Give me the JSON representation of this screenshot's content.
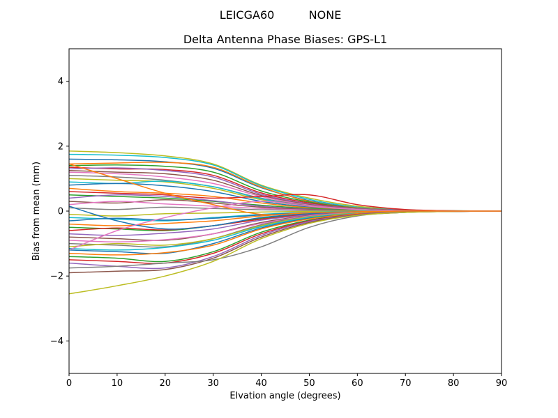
{
  "figure": {
    "suptitle": "LEICGA60        NONE",
    "suptitle_parts": [
      "LEICGA60",
      "NONE"
    ],
    "title": "Delta Antenna Phase Biases: GPS-L1"
  },
  "chart_data": {
    "type": "line",
    "suptitle": "LEICGA60        NONE",
    "title": "Delta Antenna Phase Biases: GPS-L1",
    "xlabel": "Elvation angle (degrees)",
    "ylabel": "Bias from mean (mm)",
    "xlim": [
      0,
      90
    ],
    "ylim": [
      -5,
      5
    ],
    "xticks": [
      0,
      10,
      20,
      30,
      40,
      50,
      60,
      70,
      80,
      90
    ],
    "yticks": [
      -4,
      -2,
      0,
      2,
      4
    ],
    "grid": false,
    "legend": "none",
    "x": [
      0,
      10,
      20,
      30,
      40,
      50,
      60,
      70,
      80,
      90
    ],
    "series": [
      {
        "name": "line-01",
        "color": "#bcbd22",
        "values": [
          1.85,
          1.8,
          1.7,
          1.45,
          0.8,
          0.4,
          0.15,
          0.04,
          0.01,
          0.0
        ]
      },
      {
        "name": "line-02",
        "color": "#17becf",
        "values": [
          1.75,
          1.72,
          1.65,
          1.42,
          0.78,
          0.36,
          0.12,
          0.03,
          0.01,
          0.0
        ]
      },
      {
        "name": "line-03",
        "color": "#1f77b4",
        "values": [
          1.6,
          1.58,
          1.52,
          1.32,
          0.72,
          0.32,
          0.1,
          0.03,
          0.0,
          0.0
        ]
      },
      {
        "name": "line-04",
        "color": "#ff7f0e",
        "values": [
          1.45,
          1.48,
          1.5,
          1.35,
          0.74,
          0.3,
          0.1,
          0.02,
          0.0,
          0.0
        ]
      },
      {
        "name": "line-05",
        "color": "#2ca02c",
        "values": [
          1.4,
          1.42,
          1.38,
          1.2,
          0.62,
          0.28,
          0.09,
          0.02,
          0.0,
          0.0
        ]
      },
      {
        "name": "line-06",
        "color": "#d62728",
        "values": [
          1.35,
          1.3,
          1.28,
          1.1,
          0.56,
          0.25,
          0.08,
          0.02,
          0.0,
          0.0
        ]
      },
      {
        "name": "line-07",
        "color": "#9467bd",
        "values": [
          1.3,
          1.33,
          1.25,
          1.05,
          0.52,
          0.22,
          0.08,
          0.02,
          0.0,
          0.0
        ]
      },
      {
        "name": "line-08",
        "color": "#8c564b",
        "values": [
          1.25,
          1.2,
          1.15,
          0.95,
          0.48,
          0.2,
          0.07,
          0.02,
          0.0,
          0.0
        ]
      },
      {
        "name": "line-09",
        "color": "#e377c2",
        "values": [
          1.2,
          1.15,
          1.05,
          0.85,
          0.45,
          0.18,
          0.06,
          0.01,
          0.0,
          0.0
        ]
      },
      {
        "name": "line-10",
        "color": "#7f7f7f",
        "values": [
          1.1,
          1.05,
          0.95,
          0.75,
          0.4,
          0.16,
          0.05,
          0.01,
          0.0,
          0.0
        ]
      },
      {
        "name": "line-11",
        "color": "#bcbd22",
        "values": [
          1.0,
          0.95,
          0.9,
          0.7,
          0.35,
          0.15,
          0.05,
          0.01,
          0.0,
          0.0
        ]
      },
      {
        "name": "line-12",
        "color": "#17becf",
        "values": [
          0.9,
          0.85,
          0.92,
          0.75,
          0.38,
          0.14,
          0.05,
          0.01,
          0.0,
          0.0
        ]
      },
      {
        "name": "line-13",
        "color": "#1f77b4",
        "values": [
          0.8,
          0.85,
          0.78,
          0.6,
          0.3,
          0.12,
          0.04,
          0.01,
          0.0,
          0.0
        ]
      },
      {
        "name": "line-14",
        "color": "#ff7f0e",
        "values": [
          0.7,
          0.6,
          0.55,
          0.45,
          0.25,
          0.1,
          0.03,
          0.01,
          0.0,
          0.0
        ]
      },
      {
        "name": "line-15",
        "color": "#d62728",
        "values": [
          0.6,
          0.55,
          0.5,
          0.4,
          0.45,
          0.5,
          0.2,
          0.05,
          0.01,
          0.0
        ]
      },
      {
        "name": "line-16",
        "color": "#2ca02c",
        "values": [
          0.5,
          0.45,
          0.4,
          0.3,
          0.18,
          0.08,
          0.03,
          0.01,
          0.0,
          0.0
        ]
      },
      {
        "name": "line-17",
        "color": "#9467bd",
        "values": [
          0.4,
          0.5,
          0.45,
          0.32,
          0.15,
          0.06,
          0.02,
          0.0,
          0.0,
          0.0
        ]
      },
      {
        "name": "line-18",
        "color": "#8c564b",
        "values": [
          0.3,
          0.25,
          0.35,
          0.25,
          0.12,
          0.05,
          0.02,
          0.0,
          0.0,
          0.0
        ]
      },
      {
        "name": "line-19",
        "color": "#e377c2",
        "values": [
          0.2,
          0.3,
          0.22,
          0.15,
          0.08,
          0.03,
          0.01,
          0.0,
          0.0,
          0.0
        ]
      },
      {
        "name": "line-20",
        "color": "#7f7f7f",
        "values": [
          0.1,
          0.05,
          0.12,
          0.08,
          0.04,
          0.02,
          0.01,
          0.0,
          0.0,
          0.0
        ]
      },
      {
        "name": "line-21",
        "color": "#bcbd22",
        "values": [
          -0.1,
          -0.15,
          -0.08,
          -0.06,
          -0.03,
          -0.01,
          0.0,
          0.0,
          0.0,
          0.0
        ]
      },
      {
        "name": "line-22",
        "color": "#17becf",
        "values": [
          -0.2,
          -0.25,
          -0.3,
          -0.2,
          -0.1,
          -0.04,
          -0.01,
          0.0,
          0.0,
          0.0
        ]
      },
      {
        "name": "line-23",
        "color": "#1f77b4",
        "values": [
          -0.3,
          -0.22,
          -0.28,
          -0.22,
          -0.12,
          -0.05,
          -0.02,
          0.0,
          0.0,
          0.0
        ]
      },
      {
        "name": "line-24",
        "color": "#ff7f0e",
        "values": [
          -0.4,
          -0.45,
          -0.38,
          -0.3,
          -0.15,
          -0.06,
          -0.02,
          0.0,
          0.0,
          0.0
        ]
      },
      {
        "name": "line-25",
        "color": "#2ca02c",
        "values": [
          -0.5,
          -0.55,
          -0.6,
          -0.45,
          -0.22,
          -0.09,
          -0.03,
          -0.01,
          0.0,
          0.0
        ]
      },
      {
        "name": "line-26",
        "color": "#d62728",
        "values": [
          -0.6,
          -0.52,
          -0.58,
          -0.45,
          -0.25,
          -0.1,
          -0.03,
          -0.01,
          0.0,
          0.0
        ]
      },
      {
        "name": "line-27",
        "color": "#9467bd",
        "values": [
          -0.7,
          -0.75,
          -0.68,
          -0.55,
          -0.28,
          -0.12,
          -0.04,
          -0.01,
          0.0,
          0.0
        ]
      },
      {
        "name": "line-28",
        "color": "#8c564b",
        "values": [
          -0.8,
          -0.85,
          -0.9,
          -0.7,
          -0.35,
          -0.14,
          -0.05,
          -0.01,
          0.0,
          0.0
        ]
      },
      {
        "name": "line-29",
        "color": "#e377c2",
        "values": [
          -0.9,
          -0.95,
          -0.88,
          -0.7,
          -0.38,
          -0.15,
          -0.05,
          -0.01,
          0.0,
          0.0
        ]
      },
      {
        "name": "line-30",
        "color": "#7f7f7f",
        "values": [
          -1.0,
          -1.05,
          -1.1,
          -0.85,
          -0.42,
          -0.17,
          -0.06,
          -0.01,
          0.0,
          0.0
        ]
      },
      {
        "name": "line-31",
        "color": "#bcbd22",
        "values": [
          -1.1,
          -1.0,
          -1.05,
          -0.85,
          -0.45,
          -0.18,
          -0.06,
          -0.02,
          0.0,
          0.0
        ]
      },
      {
        "name": "line-32",
        "color": "#17becf",
        "values": [
          -1.15,
          -1.2,
          -1.12,
          -0.9,
          -0.48,
          -0.2,
          -0.07,
          -0.02,
          0.0,
          0.0
        ]
      },
      {
        "name": "line-33",
        "color": "#1f77b4",
        "values": [
          -1.2,
          -1.25,
          -1.3,
          -1.0,
          -0.52,
          -0.22,
          -0.08,
          -0.02,
          0.0,
          0.0
        ]
      },
      {
        "name": "line-34",
        "color": "#ff7f0e",
        "values": [
          -1.3,
          -1.35,
          -1.28,
          -1.05,
          -0.55,
          -0.24,
          -0.08,
          -0.02,
          0.0,
          0.0
        ]
      },
      {
        "name": "line-35",
        "color": "#2ca02c",
        "values": [
          -1.4,
          -1.45,
          -1.55,
          -1.25,
          -0.65,
          -0.28,
          -0.1,
          -0.03,
          -0.01,
          0.0
        ]
      },
      {
        "name": "line-36",
        "color": "#d62728",
        "values": [
          -1.5,
          -1.55,
          -1.6,
          -1.3,
          -0.7,
          -0.3,
          -0.1,
          -0.03,
          -0.01,
          0.0
        ]
      },
      {
        "name": "line-37",
        "color": "#9467bd",
        "values": [
          -1.6,
          -1.7,
          -1.75,
          -1.4,
          -0.75,
          -0.32,
          -0.11,
          -0.03,
          -0.01,
          0.0
        ]
      },
      {
        "name": "line-38",
        "color": "#8c564b",
        "values": [
          -1.9,
          -1.85,
          -1.8,
          -1.45,
          -0.8,
          -0.35,
          -0.12,
          -0.04,
          -0.01,
          0.0
        ]
      },
      {
        "name": "line-39",
        "color": "#7f7f7f",
        "values": [
          -1.75,
          -1.7,
          -1.6,
          -1.5,
          -1.1,
          -0.5,
          -0.15,
          -0.04,
          -0.01,
          0.0
        ]
      },
      {
        "name": "line-40",
        "color": "#bcbd22",
        "values": [
          -2.55,
          -2.3,
          -2.0,
          -1.55,
          -0.85,
          -0.38,
          -0.13,
          -0.04,
          -0.01,
          0.0
        ]
      },
      {
        "name": "line-41",
        "color": "#1f77b4",
        "values": [
          0.15,
          -0.3,
          -0.55,
          -0.45,
          -0.2,
          -0.08,
          -0.02,
          0.0,
          0.0,
          0.0
        ]
      },
      {
        "name": "line-42",
        "color": "#e377c2",
        "values": [
          -1.2,
          -0.6,
          -0.2,
          0.1,
          0.3,
          0.15,
          0.05,
          0.01,
          0.0,
          0.0
        ]
      },
      {
        "name": "line-43",
        "color": "#ff7f0e",
        "values": [
          1.45,
          1.0,
          0.55,
          0.2,
          -0.1,
          -0.05,
          -0.02,
          0.0,
          0.0,
          0.0
        ]
      }
    ]
  }
}
